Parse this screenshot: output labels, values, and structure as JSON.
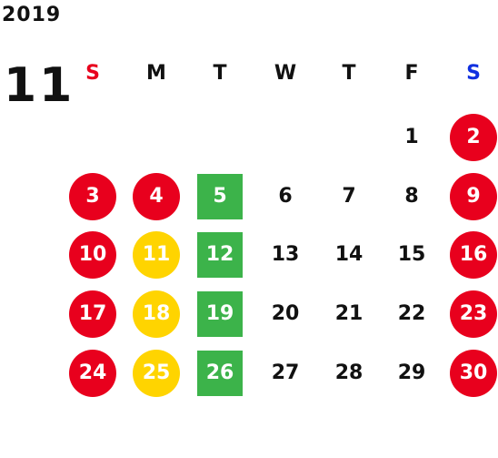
{
  "header": {
    "year": "2019",
    "month": "11"
  },
  "colors": {
    "sunday": "#e8001d",
    "saturday": "#1030e0",
    "holiday_circle": "#e8001d",
    "yellow_circle": "#ffd400",
    "green_square": "#3cb34a"
  },
  "weekdays": [
    {
      "label": "S",
      "type": "sun"
    },
    {
      "label": "M",
      "type": "normal"
    },
    {
      "label": "T",
      "type": "normal"
    },
    {
      "label": "W",
      "type": "normal"
    },
    {
      "label": "T",
      "type": "normal"
    },
    {
      "label": "F",
      "type": "normal"
    },
    {
      "label": "S",
      "type": "sat"
    }
  ],
  "weeks": [
    [
      null,
      null,
      null,
      null,
      null,
      {
        "d": "1",
        "m": "plain"
      },
      {
        "d": "2",
        "m": "red"
      }
    ],
    [
      {
        "d": "3",
        "m": "red"
      },
      {
        "d": "4",
        "m": "red"
      },
      {
        "d": "5",
        "m": "green"
      },
      {
        "d": "6",
        "m": "plain"
      },
      {
        "d": "7",
        "m": "plain"
      },
      {
        "d": "8",
        "m": "plain"
      },
      {
        "d": "9",
        "m": "red"
      }
    ],
    [
      {
        "d": "10",
        "m": "red"
      },
      {
        "d": "11",
        "m": "yellow"
      },
      {
        "d": "12",
        "m": "green"
      },
      {
        "d": "13",
        "m": "plain"
      },
      {
        "d": "14",
        "m": "plain"
      },
      {
        "d": "15",
        "m": "plain"
      },
      {
        "d": "16",
        "m": "red"
      }
    ],
    [
      {
        "d": "17",
        "m": "red"
      },
      {
        "d": "18",
        "m": "yellow"
      },
      {
        "d": "19",
        "m": "green"
      },
      {
        "d": "20",
        "m": "plain"
      },
      {
        "d": "21",
        "m": "plain"
      },
      {
        "d": "22",
        "m": "plain"
      },
      {
        "d": "23",
        "m": "red"
      }
    ],
    [
      {
        "d": "24",
        "m": "red"
      },
      {
        "d": "25",
        "m": "yellow"
      },
      {
        "d": "26",
        "m": "green"
      },
      {
        "d": "27",
        "m": "plain"
      },
      {
        "d": "28",
        "m": "plain"
      },
      {
        "d": "29",
        "m": "plain"
      },
      {
        "d": "30",
        "m": "red"
      }
    ]
  ]
}
